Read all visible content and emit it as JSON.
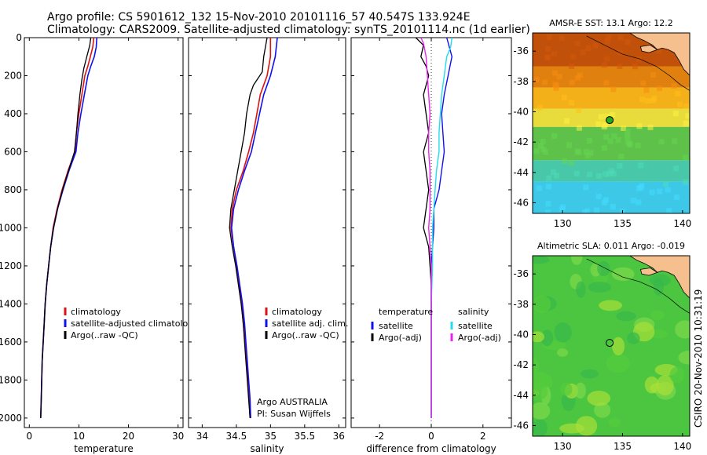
{
  "header": {
    "line1": "Argo profile: CS 5901612_132 15-Nov-2010 20101116_57 40.547S 133.924E",
    "line2": "Climatology: CARS2009. Satellite-adjusted climatology: synTS_20101114.nc (1d earlier)"
  },
  "side_stamp": "CSIRO 20-Nov-2010 10:31:19",
  "colors": {
    "climatology": "#dd1111",
    "satellite": "#1111ee",
    "argo": "#000000",
    "argo_salinity_diff": "#ee22ee",
    "satellite_salinity_diff": "#22ddee",
    "land": "#f5c08e"
  },
  "chart_data": [
    {
      "type": "line",
      "id": "temperature",
      "xlabel": "temperature",
      "ylabel": "",
      "xlim": [
        -1,
        31
      ],
      "ylim": [
        2050,
        0
      ],
      "y_reversed": true,
      "xticks": [
        0,
        10,
        20,
        30
      ],
      "yticks": [
        0,
        200,
        400,
        600,
        800,
        1000,
        1200,
        1400,
        1600,
        1800,
        2000
      ],
      "legend": [
        "climatology",
        "satellite-adjusted climatology",
        "Argo(..raw -QC)"
      ],
      "legend_position": "lower-right",
      "series": [
        {
          "name": "climatology",
          "color": "#dd1111",
          "width": 1.6,
          "points": [
            [
              13.0,
              0
            ],
            [
              12.8,
              50
            ],
            [
              12.3,
              100
            ],
            [
              11.8,
              150
            ],
            [
              11.2,
              200
            ],
            [
              10.6,
              300
            ],
            [
              10.0,
              400
            ],
            [
              9.5,
              500
            ],
            [
              9.2,
              600
            ],
            [
              7.8,
              700
            ],
            [
              6.6,
              800
            ],
            [
              5.6,
              900
            ],
            [
              4.8,
              1000
            ],
            [
              4.3,
              1100
            ],
            [
              3.9,
              1200
            ],
            [
              3.5,
              1300
            ],
            [
              3.2,
              1400
            ],
            [
              3.0,
              1500
            ],
            [
              2.8,
              1600
            ],
            [
              2.6,
              1700
            ],
            [
              2.5,
              1800
            ],
            [
              2.4,
              1900
            ],
            [
              2.3,
              2000
            ]
          ]
        },
        {
          "name": "satellite-adjusted climatology",
          "color": "#1111ee",
          "width": 1.6,
          "points": [
            [
              13.6,
              0
            ],
            [
              13.5,
              50
            ],
            [
              13.1,
              100
            ],
            [
              12.4,
              150
            ],
            [
              11.8,
              200
            ],
            [
              11.1,
              300
            ],
            [
              10.4,
              400
            ],
            [
              9.8,
              500
            ],
            [
              9.4,
              600
            ],
            [
              8.0,
              700
            ],
            [
              6.8,
              800
            ],
            [
              5.7,
              900
            ],
            [
              4.9,
              1000
            ],
            [
              4.3,
              1100
            ],
            [
              3.9,
              1200
            ],
            [
              3.5,
              1300
            ],
            [
              3.2,
              1400
            ],
            [
              3.0,
              1500
            ],
            [
              2.8,
              1600
            ],
            [
              2.6,
              1700
            ],
            [
              2.5,
              1800
            ],
            [
              2.4,
              1900
            ],
            [
              2.3,
              2000
            ]
          ]
        },
        {
          "name": "Argo(..raw -QC)",
          "color": "#000000",
          "width": 1.3,
          "points": [
            [
              12.4,
              0
            ],
            [
              12.2,
              40
            ],
            [
              11.6,
              100
            ],
            [
              11.0,
              160
            ],
            [
              10.6,
              220
            ],
            [
              10.2,
              300
            ],
            [
              9.8,
              400
            ],
            [
              9.5,
              500
            ],
            [
              9.1,
              600
            ],
            [
              7.9,
              700
            ],
            [
              6.7,
              800
            ],
            [
              5.7,
              900
            ],
            [
              4.9,
              1000
            ],
            [
              4.3,
              1100
            ],
            [
              3.9,
              1200
            ],
            [
              3.5,
              1300
            ],
            [
              3.2,
              1400
            ],
            [
              3.0,
              1500
            ],
            [
              2.8,
              1600
            ],
            [
              2.6,
              1700
            ],
            [
              2.5,
              1800
            ],
            [
              2.4,
              1900
            ],
            [
              2.3,
              2000
            ]
          ]
        }
      ]
    },
    {
      "type": "line",
      "id": "salinity",
      "xlabel": "salinity",
      "ylabel": "",
      "xlim": [
        33.8,
        36.1
      ],
      "ylim": [
        2050,
        0
      ],
      "y_reversed": true,
      "xticks": [
        34,
        34.5,
        35,
        35.5,
        36
      ],
      "legend": [
        "climatology",
        "satellite adj. clim.",
        "Argo(..raw -QC)"
      ],
      "legend_position": "lower-right",
      "annotations": [
        "Argo AUSTRALIA",
        "PI: Susan Wijffels"
      ],
      "series": [
        {
          "name": "climatology",
          "color": "#dd1111",
          "width": 1.6,
          "points": [
            [
              35.0,
              0
            ],
            [
              35.0,
              100
            ],
            [
              34.95,
              200
            ],
            [
              34.85,
              300
            ],
            [
              34.8,
              400
            ],
            [
              34.75,
              500
            ],
            [
              34.68,
              600
            ],
            [
              34.6,
              700
            ],
            [
              34.5,
              800
            ],
            [
              34.44,
              900
            ],
            [
              34.42,
              1000
            ],
            [
              34.46,
              1100
            ],
            [
              34.5,
              1200
            ],
            [
              34.54,
              1300
            ],
            [
              34.58,
              1400
            ],
            [
              34.6,
              1500
            ],
            [
              34.63,
              1600
            ],
            [
              34.65,
              1700
            ],
            [
              34.67,
              1800
            ],
            [
              34.69,
              1900
            ],
            [
              34.7,
              2000
            ]
          ]
        },
        {
          "name": "satellite adj. clim.",
          "color": "#1111ee",
          "width": 1.6,
          "points": [
            [
              35.1,
              0
            ],
            [
              35.07,
              100
            ],
            [
              35.0,
              200
            ],
            [
              34.9,
              300
            ],
            [
              34.84,
              400
            ],
            [
              34.78,
              500
            ],
            [
              34.72,
              600
            ],
            [
              34.62,
              700
            ],
            [
              34.53,
              800
            ],
            [
              34.46,
              900
            ],
            [
              34.43,
              1000
            ],
            [
              34.46,
              1100
            ],
            [
              34.51,
              1200
            ],
            [
              34.55,
              1300
            ],
            [
              34.59,
              1400
            ],
            [
              34.62,
              1500
            ],
            [
              34.64,
              1600
            ],
            [
              34.66,
              1700
            ],
            [
              34.68,
              1800
            ],
            [
              34.7,
              1900
            ],
            [
              34.71,
              2000
            ]
          ]
        },
        {
          "name": "Argo(..raw -QC)",
          "color": "#000000",
          "width": 1.3,
          "points": [
            [
              34.95,
              0
            ],
            [
              34.9,
              100
            ],
            [
              34.88,
              180
            ],
            [
              34.75,
              250
            ],
            [
              34.7,
              300
            ],
            [
              34.65,
              400
            ],
            [
              34.62,
              500
            ],
            [
              34.57,
              600
            ],
            [
              34.52,
              700
            ],
            [
              34.47,
              800
            ],
            [
              34.42,
              900
            ],
            [
              34.4,
              1000
            ],
            [
              34.44,
              1100
            ],
            [
              34.49,
              1200
            ],
            [
              34.53,
              1300
            ],
            [
              34.57,
              1400
            ],
            [
              34.6,
              1500
            ],
            [
              34.62,
              1600
            ],
            [
              34.64,
              1700
            ],
            [
              34.66,
              1800
            ],
            [
              34.68,
              1900
            ],
            [
              34.7,
              2000
            ]
          ]
        }
      ]
    },
    {
      "type": "line",
      "id": "difference",
      "xlabel": "difference from climatology",
      "ylabel": "",
      "xlim": [
        -3.1,
        3.1
      ],
      "ylim": [
        2050,
        0
      ],
      "y_reversed": true,
      "xticks": [
        -2,
        0,
        2
      ],
      "reference_line": 0,
      "legend_groups": [
        {
          "title": "temperature",
          "items": [
            "satellite",
            "Argo(-adj)"
          ]
        },
        {
          "title": "salinity",
          "items": [
            "satellite",
            "Argo(-adj)"
          ]
        }
      ],
      "series": [
        {
          "name": "satellite",
          "group": "temperature",
          "color": "#1111ee",
          "width": 1.4,
          "points": [
            [
              0.6,
              0
            ],
            [
              0.7,
              50
            ],
            [
              0.8,
              100
            ],
            [
              0.65,
              200
            ],
            [
              0.5,
              300
            ],
            [
              0.4,
              400
            ],
            [
              0.45,
              500
            ],
            [
              0.5,
              600
            ],
            [
              0.4,
              700
            ],
            [
              0.3,
              800
            ],
            [
              0.1,
              900
            ],
            [
              0.1,
              1000
            ],
            [
              0.05,
              1100
            ],
            [
              0,
              1200
            ],
            [
              0,
              1400
            ],
            [
              0,
              1600
            ],
            [
              0,
              1800
            ],
            [
              0,
              2000
            ]
          ]
        },
        {
          "name": "Argo(-adj)",
          "group": "temperature",
          "color": "#000000",
          "width": 1.3,
          "points": [
            [
              -0.6,
              0
            ],
            [
              -0.3,
              40
            ],
            [
              -0.4,
              100
            ],
            [
              -0.2,
              150
            ],
            [
              -0.1,
              200
            ],
            [
              -0.3,
              300
            ],
            [
              -0.2,
              400
            ],
            [
              -0.1,
              500
            ],
            [
              -0.3,
              600
            ],
            [
              -0.2,
              700
            ],
            [
              -0.1,
              800
            ],
            [
              -0.2,
              900
            ],
            [
              -0.3,
              1000
            ],
            [
              -0.1,
              1100
            ],
            [
              -0.05,
              1200
            ],
            [
              0,
              1300
            ],
            [
              0,
              1400
            ],
            [
              0,
              1600
            ],
            [
              0,
              1800
            ],
            [
              0,
              2000
            ]
          ]
        },
        {
          "name": "satellite",
          "group": "salinity",
          "color": "#22ddee",
          "width": 1.4,
          "points": [
            [
              0.8,
              0
            ],
            [
              0.75,
              50
            ],
            [
              0.6,
              100
            ],
            [
              0.5,
              200
            ],
            [
              0.4,
              300
            ],
            [
              0.35,
              400
            ],
            [
              0.3,
              500
            ],
            [
              0.3,
              600
            ],
            [
              0.2,
              700
            ],
            [
              0.15,
              800
            ],
            [
              0.1,
              900
            ],
            [
              0.05,
              1000
            ],
            [
              0.05,
              1200
            ],
            [
              0,
              1400
            ],
            [
              0,
              1600
            ],
            [
              0,
              1800
            ],
            [
              0,
              2000
            ]
          ]
        },
        {
          "name": "Argo(-adj)",
          "group": "salinity",
          "color": "#ee22ee",
          "width": 1.4,
          "points": [
            [
              -0.4,
              0
            ],
            [
              -0.3,
              30
            ],
            [
              -0.2,
              100
            ],
            [
              -0.1,
              300
            ],
            [
              -0.05,
              400
            ],
            [
              -0.1,
              500
            ],
            [
              -0.1,
              600
            ],
            [
              -0.05,
              700
            ],
            [
              -0.05,
              900
            ],
            [
              -0.1,
              1000
            ],
            [
              -0.05,
              1100
            ],
            [
              0,
              1200
            ],
            [
              0,
              1400
            ],
            [
              0,
              1600
            ],
            [
              0,
              1800
            ],
            [
              0,
              2000
            ]
          ]
        }
      ]
    },
    {
      "type": "heatmap",
      "id": "sst_map",
      "title": "AMSR-E SST: 13.1 Argo: 12.2",
      "xlim": [
        127.5,
        140.6
      ],
      "ylim": [
        -46.7,
        -34.8
      ],
      "xticks": [
        130,
        135,
        140
      ],
      "yticks": [
        -36,
        -38,
        -40,
        -42,
        -44,
        -46
      ],
      "marker": {
        "lon": 133.924,
        "lat": -40.547,
        "fill": "#22aa22"
      },
      "value_bands": [
        {
          "lat_from": -34.8,
          "lat_to": -37.0,
          "color": "#c0500a"
        },
        {
          "lat_from": -37.0,
          "lat_to": -38.4,
          "color": "#e0800f"
        },
        {
          "lat_from": -38.4,
          "lat_to": -39.8,
          "color": "#f4b018"
        },
        {
          "lat_from": -39.8,
          "lat_to": -41.0,
          "color": "#e8dc3c"
        },
        {
          "lat_from": -41.0,
          "lat_to": -43.2,
          "color": "#5ec24a"
        },
        {
          "lat_from": -43.2,
          "lat_to": -44.6,
          "color": "#48c8a8"
        },
        {
          "lat_from": -44.6,
          "lat_to": -46.7,
          "color": "#3ec8e8"
        }
      ]
    },
    {
      "type": "heatmap",
      "id": "sla_map",
      "title": "Altimetric SLA: 0.011 Argo: -0.019",
      "xlim": [
        127.5,
        140.6
      ],
      "ylim": [
        -46.7,
        -34.8
      ],
      "xticks": [
        130,
        135,
        140
      ],
      "yticks": [
        -36,
        -38,
        -40,
        -42,
        -44,
        -46
      ],
      "marker": {
        "lon": 133.924,
        "lat": -40.547,
        "fill": "none"
      },
      "base_color": "#4cc640"
    }
  ]
}
